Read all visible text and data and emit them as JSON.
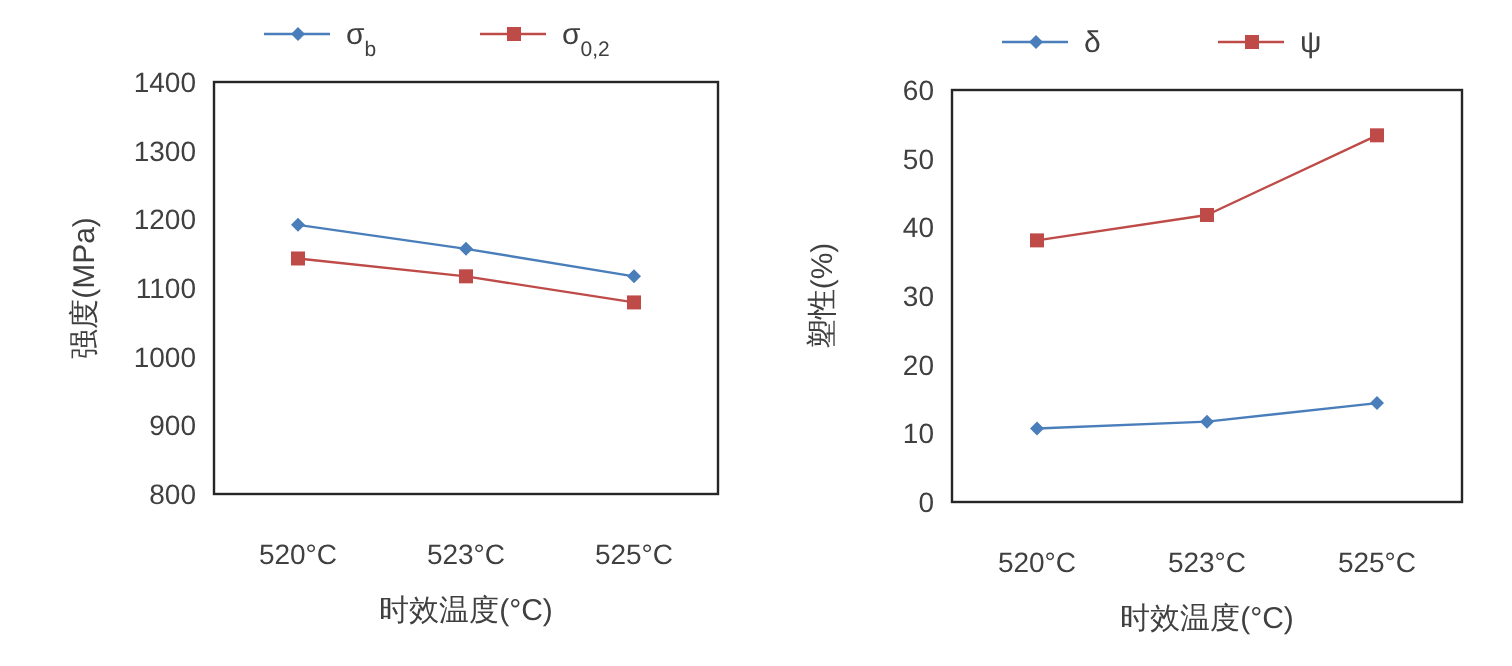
{
  "chart_data": [
    {
      "type": "line",
      "categories": [
        "520°C",
        "523°C",
        "525°C"
      ],
      "xlabel": "时效温度(°C)",
      "ylabel": "强度(MPa)",
      "ylim": [
        800,
        1400
      ],
      "yticks": [
        800,
        900,
        1000,
        1100,
        1200,
        1300,
        1400
      ],
      "legend": "top",
      "grid": false,
      "series": [
        {
          "name": "σ$_{b}$",
          "color": "#4a7ebb",
          "marker": "diamond",
          "values": [
            1192,
            1157,
            1117
          ]
        },
        {
          "name": "σ$_{0,2}$",
          "color": "#be4b48",
          "marker": "square",
          "values": [
            1143,
            1117,
            1079
          ]
        }
      ]
    },
    {
      "type": "line",
      "categories": [
        "520°C",
        "523°C",
        "525°C"
      ],
      "xlabel": "时效温度(°C)",
      "ylabel": "塑性(%)",
      "ylim": [
        0,
        60
      ],
      "yticks": [
        0,
        10,
        20,
        30,
        40,
        50,
        60
      ],
      "legend": "top",
      "grid": false,
      "series": [
        {
          "name": "δ",
          "color": "#4a7ebb",
          "marker": "diamond",
          "values": [
            10.7,
            11.7,
            14.4
          ]
        },
        {
          "name": "ψ",
          "color": "#be4b48",
          "marker": "square",
          "values": [
            38.1,
            41.8,
            53.4
          ]
        }
      ]
    }
  ]
}
